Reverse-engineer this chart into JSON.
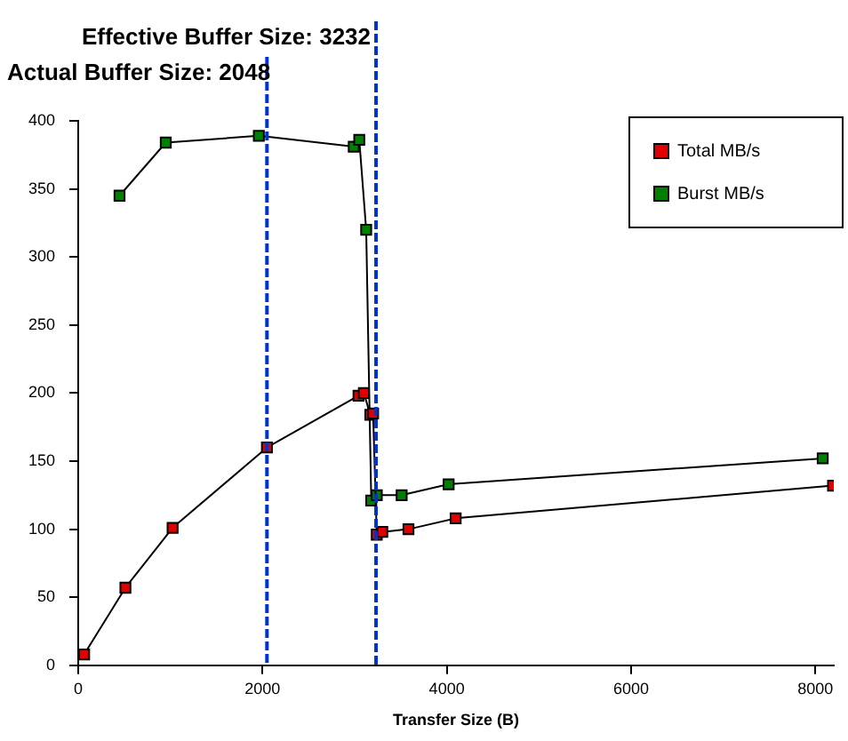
{
  "chart_data": {
    "type": "line",
    "xlabel": "Transfer Size (B)",
    "xlim": [
      0,
      8200
    ],
    "xticks": [
      0,
      2000,
      4000,
      6000,
      8000
    ],
    "ylim": [
      0,
      400
    ],
    "yticks": [
      0,
      50,
      100,
      150,
      200,
      250,
      300,
      350,
      400
    ],
    "grid": false,
    "legend": "top right",
    "marker": "square",
    "line_style": "solid",
    "ref_lines": [
      {
        "axis": "x",
        "value": 2048,
        "label": "Actual Buffer Size: 2048",
        "color": "#0033cc",
        "line_style": "dashed"
      },
      {
        "axis": "x",
        "value": 3232,
        "label": "Effective Buffer Size: 3232",
        "color": "#0033cc",
        "line_style": "dashed"
      }
    ],
    "series": [
      {
        "name": "Total MB/s",
        "color": "#e00000",
        "x": [
          64,
          512,
          1024,
          2048,
          3042,
          3100,
          3170,
          3200,
          3240,
          3300,
          3584,
          4096,
          8192
        ],
        "values": [
          8,
          57,
          101,
          160,
          198,
          200,
          184,
          185,
          96,
          98,
          100,
          108,
          132
        ]
      },
      {
        "name": "Burst MB/s",
        "color": "#008000",
        "x": [
          448,
          950,
          1960,
          2990,
          3050,
          3125,
          3180,
          3240,
          3510,
          4020,
          8080
        ],
        "values": [
          345,
          384,
          389,
          381,
          386,
          320,
          121,
          125,
          125,
          133,
          152
        ]
      }
    ]
  }
}
